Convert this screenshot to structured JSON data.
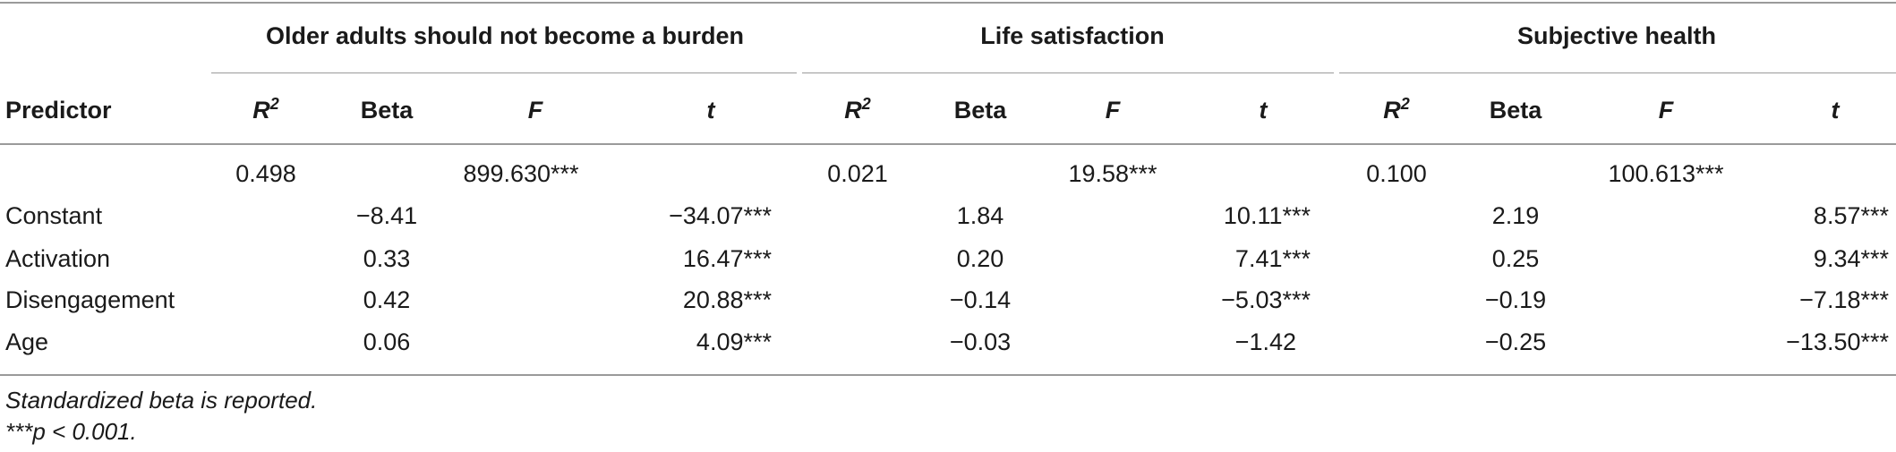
{
  "groups": [
    {
      "label": "Older adults should not become a burden"
    },
    {
      "label": "Life satisfaction"
    },
    {
      "label": "Subjective health"
    }
  ],
  "header": {
    "predictor": "Predictor",
    "r2_base": "R",
    "r2_sup": "2",
    "beta": "Beta",
    "f": "F",
    "t": "t"
  },
  "model_row": [
    {
      "r2": "0.498",
      "f": "899.630***"
    },
    {
      "r2": "0.021",
      "f": "19.58***"
    },
    {
      "r2": "0.100",
      "f": "100.613***"
    }
  ],
  "rows": [
    {
      "label": "Constant",
      "vals": [
        {
          "beta": "−8.41",
          "t": "−34.07***"
        },
        {
          "beta": "1.84",
          "t": "10.11***"
        },
        {
          "beta": "2.19",
          "t": "8.57***"
        }
      ]
    },
    {
      "label": "Activation",
      "vals": [
        {
          "beta": "0.33",
          "t": "16.47***"
        },
        {
          "beta": "0.20",
          "t": "7.41***"
        },
        {
          "beta": "0.25",
          "t": "9.34***"
        }
      ]
    },
    {
      "label": "Disengagement",
      "vals": [
        {
          "beta": "0.42",
          "t": "20.88***"
        },
        {
          "beta": "−0.14",
          "t": "−5.03***"
        },
        {
          "beta": "−0.19",
          "t": "−7.18***"
        }
      ]
    },
    {
      "label": "Age",
      "vals": [
        {
          "beta": "0.06",
          "t": "4.09***"
        },
        {
          "beta": "−0.03",
          "t": "−1.42"
        },
        {
          "beta": "−0.25",
          "t": "−13.50***"
        }
      ]
    }
  ],
  "notes": {
    "line1": "Standardized beta is reported.",
    "line2": "***p < 0.001."
  }
}
